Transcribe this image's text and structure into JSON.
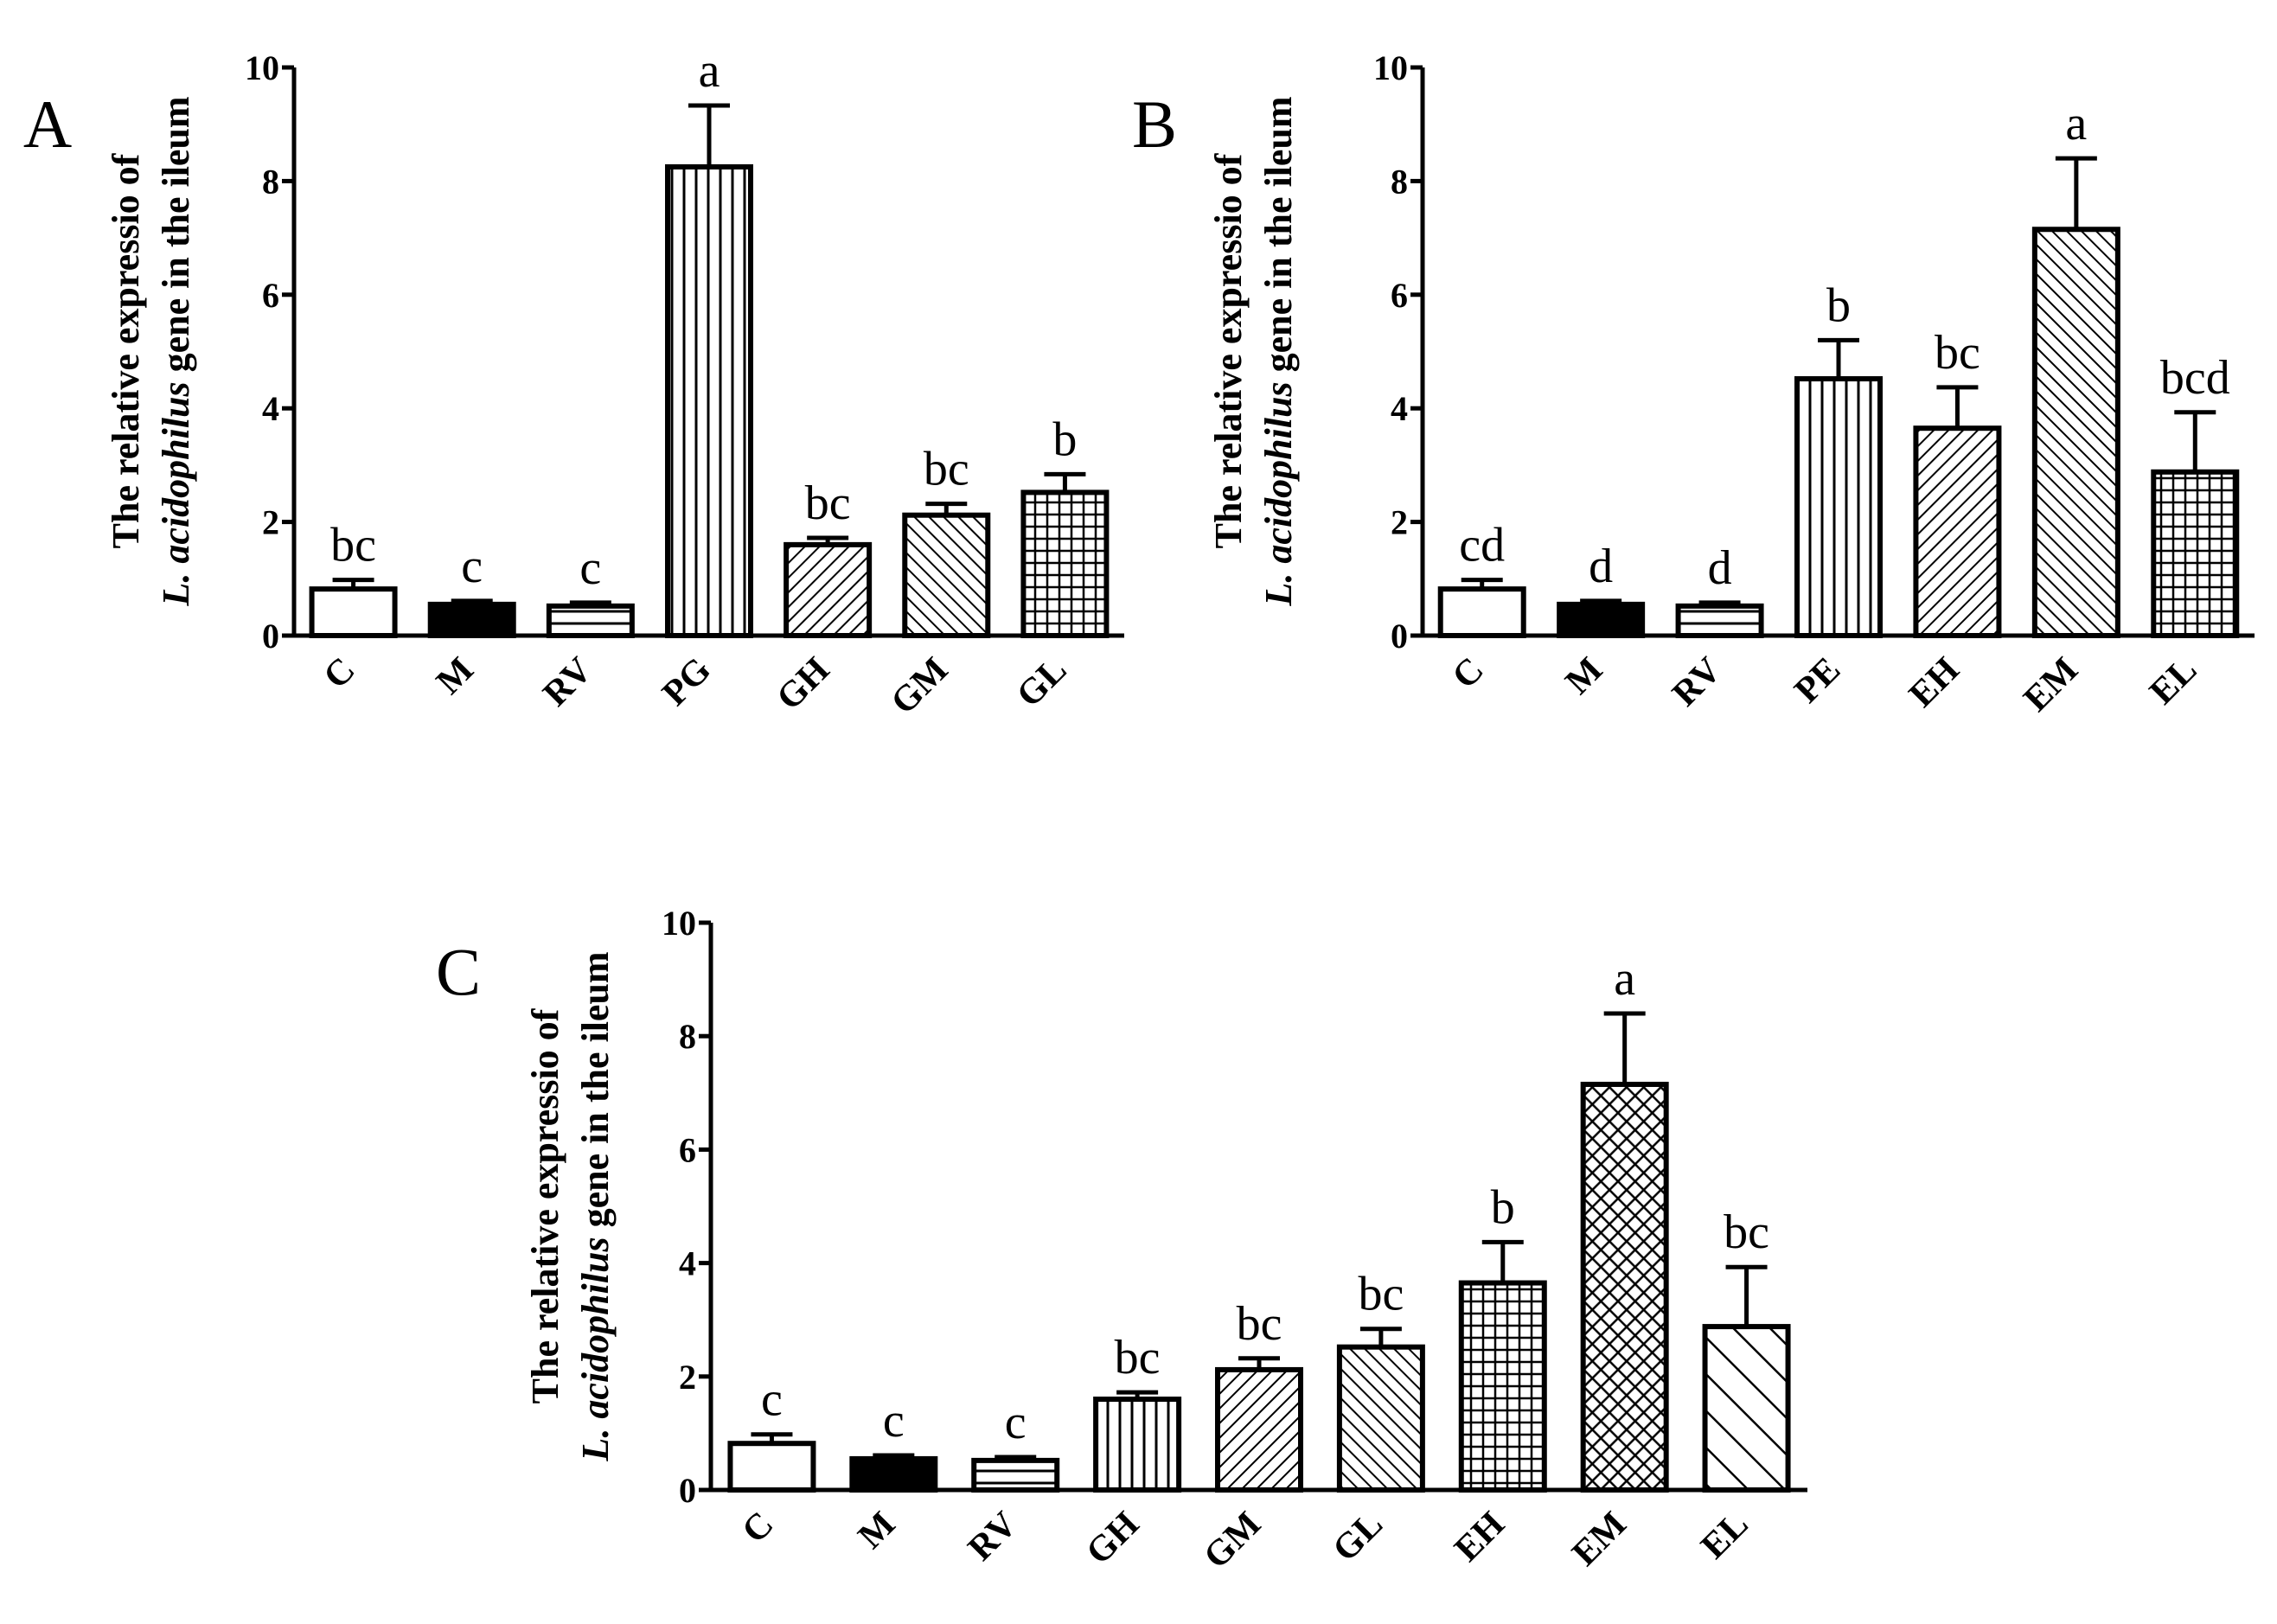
{
  "colors": {
    "ink": "#000000",
    "background": "#ffffff"
  },
  "y_axis_label": {
    "line1": "The relative expressio of",
    "line2_italic": "L. acidophilus",
    "line2_rest": " gene in the ileum"
  },
  "chart_data": [
    {
      "panel": "A",
      "type": "bar",
      "title": "",
      "xlabel": "",
      "ylabel": "The relative expressio of L. acidophilus gene in the ileum",
      "ylim": [
        0,
        10
      ],
      "yticks": [
        "0",
        "2",
        "4",
        "6",
        "8",
        "10"
      ],
      "categories": [
        "C",
        "M",
        "RV",
        "PG",
        "GH",
        "GM",
        "GL"
      ],
      "values": [
        0.82,
        0.55,
        0.52,
        8.25,
        1.6,
        2.12,
        2.52
      ],
      "errors": [
        0.16,
        0.06,
        0.06,
        1.08,
        0.12,
        0.2,
        0.32
      ],
      "labels": [
        "bc",
        "c",
        "c",
        "a",
        "bc",
        "bc",
        "b"
      ],
      "patterns": [
        "blank",
        "solid",
        "hlines",
        "vlines",
        "diag-right",
        "diag-left",
        "grid"
      ]
    },
    {
      "panel": "B",
      "type": "bar",
      "title": "",
      "xlabel": "",
      "ylabel": "The relative expressio of L. acidophilus gene in the ileum",
      "ylim": [
        0,
        10
      ],
      "yticks": [
        "0",
        "2",
        "4",
        "6",
        "8",
        "10"
      ],
      "categories": [
        "C",
        "M",
        "RV",
        "PE",
        "EH",
        "EM",
        "EL"
      ],
      "values": [
        0.82,
        0.55,
        0.52,
        4.52,
        3.65,
        7.15,
        2.88
      ],
      "errors": [
        0.16,
        0.06,
        0.06,
        0.68,
        0.72,
        1.25,
        1.05
      ],
      "labels": [
        "cd",
        "d",
        "d",
        "b",
        "bc",
        "a",
        "bcd"
      ],
      "patterns": [
        "blank",
        "solid",
        "hlines",
        "vlines",
        "diag-right",
        "diag-left",
        "grid"
      ]
    },
    {
      "panel": "C",
      "type": "bar",
      "title": "",
      "xlabel": "",
      "ylabel": "The relative expressio of L. acidophilus gene in the ileum",
      "ylim": [
        0,
        10
      ],
      "yticks": [
        "0",
        "2",
        "4",
        "6",
        "8",
        "10"
      ],
      "categories": [
        "C",
        "M",
        "RV",
        "GH",
        "GM",
        "GL",
        "EH",
        "EM",
        "EL"
      ],
      "values": [
        0.82,
        0.55,
        0.52,
        1.6,
        2.12,
        2.52,
        3.65,
        7.15,
        2.88
      ],
      "errors": [
        0.16,
        0.06,
        0.06,
        0.12,
        0.2,
        0.32,
        0.72,
        1.25,
        1.05
      ],
      "labels": [
        "c",
        "c",
        "c",
        "bc",
        "bc",
        "bc",
        "b",
        "a",
        "bc"
      ],
      "patterns": [
        "blank",
        "solid",
        "hlines",
        "vlines",
        "diag-right",
        "diag-left",
        "grid",
        "crosshatch",
        "diag-left-wide"
      ]
    }
  ]
}
